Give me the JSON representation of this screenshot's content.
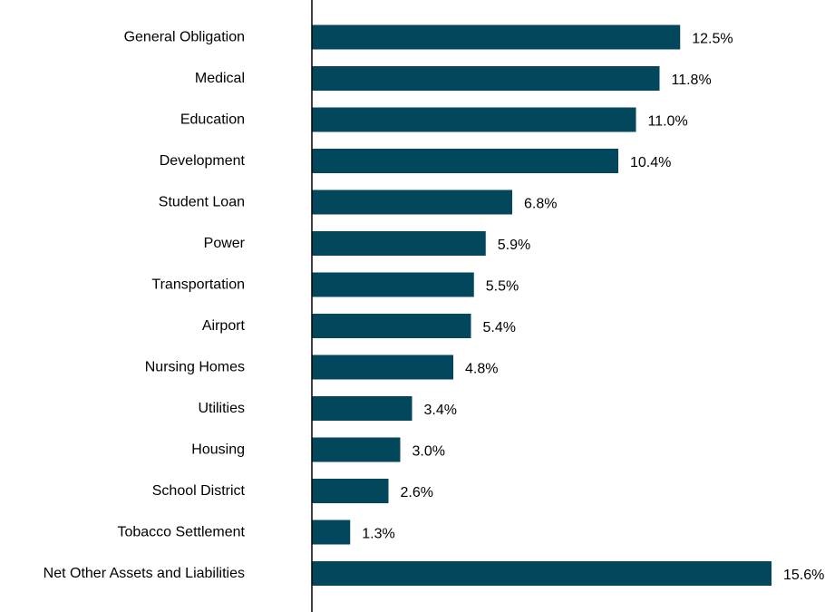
{
  "chart_data": {
    "type": "bar",
    "orientation": "horizontal",
    "categories": [
      "General Obligation",
      "Medical",
      "Education",
      "Development",
      "Student Loan",
      "Power",
      "Transportation",
      "Airport",
      "Nursing Homes",
      "Utilities",
      "Housing",
      "School District",
      "Tobacco Settlement",
      "Net Other Assets and Liabilities"
    ],
    "values": [
      12.5,
      11.8,
      11.0,
      10.4,
      6.8,
      5.9,
      5.5,
      5.4,
      4.8,
      3.4,
      3.0,
      2.6,
      1.3,
      15.6
    ],
    "value_labels": [
      "12.5%",
      "11.8%",
      "11.0%",
      "10.4%",
      "6.8%",
      "5.9%",
      "5.5%",
      "5.4%",
      "4.8%",
      "3.4%",
      "3.0%",
      "2.6%",
      "1.3%",
      "15.6%"
    ],
    "xlim": [
      0,
      15.6
    ],
    "grid": false,
    "legend": "none",
    "bar_color": "#03475c",
    "axis_color": "#000000"
  }
}
